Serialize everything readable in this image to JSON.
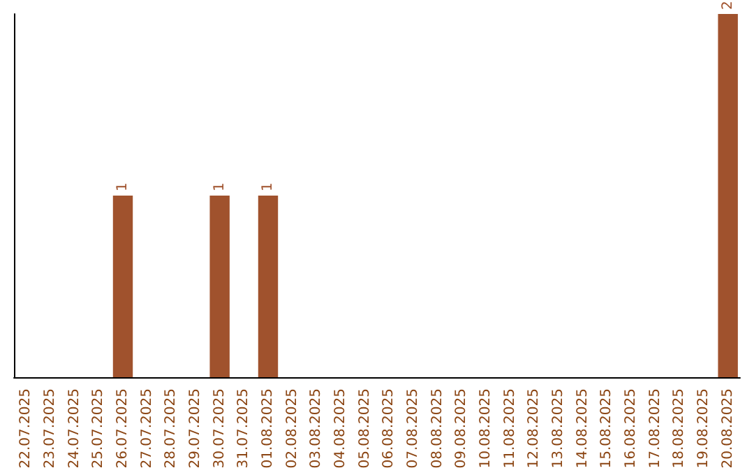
{
  "chart_data": {
    "type": "bar",
    "categories": [
      "22.07.2025",
      "23.07.2025",
      "24.07.2025",
      "25.07.2025",
      "26.07.2025",
      "27.07.2025",
      "28.07.2025",
      "29.07.2025",
      "30.07.2025",
      "31.07.2025",
      "01.08.2025",
      "02.08.2025",
      "03.08.2025",
      "04.08.2025",
      "05.08.2025",
      "06.08.2025",
      "07.08.2025",
      "08.08.2025",
      "09.08.2025",
      "10.08.2025",
      "11.08.2025",
      "12.08.2025",
      "13.08.2025",
      "14.08.2025",
      "15.08.2025",
      "16.08.2025",
      "17.08.2025",
      "18.08.2025",
      "19.08.2025",
      "20.08.2025"
    ],
    "values": [
      0,
      0,
      0,
      0,
      1,
      0,
      0,
      0,
      1,
      0,
      1,
      0,
      0,
      0,
      0,
      0,
      0,
      0,
      0,
      0,
      0,
      0,
      0,
      0,
      0,
      0,
      0,
      0,
      0,
      2
    ],
    "value_labels": [
      null,
      null,
      null,
      null,
      "1",
      null,
      null,
      null,
      "1",
      null,
      "1",
      null,
      null,
      null,
      null,
      null,
      null,
      null,
      null,
      null,
      null,
      null,
      null,
      null,
      null,
      null,
      null,
      null,
      null,
      "2"
    ],
    "color": "#a0522d",
    "tick_labels": "x"
  }
}
